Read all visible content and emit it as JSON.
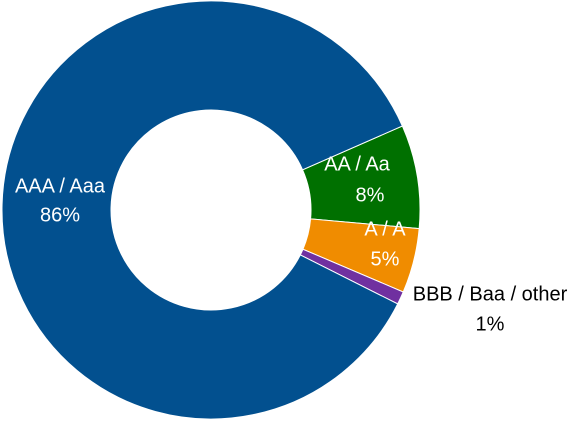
{
  "chart_data": {
    "type": "donut",
    "categories": [
      "AAA / Aaa",
      "AA / Aa",
      "A / A",
      "BBB / Baa / other"
    ],
    "values": [
      86,
      8,
      5,
      1
    ],
    "value_labels": [
      "86%",
      "8%",
      "5%",
      "1%"
    ],
    "colors": [
      "#02508f",
      "#007000",
      "#f08c00",
      "#7030a0"
    ]
  }
}
